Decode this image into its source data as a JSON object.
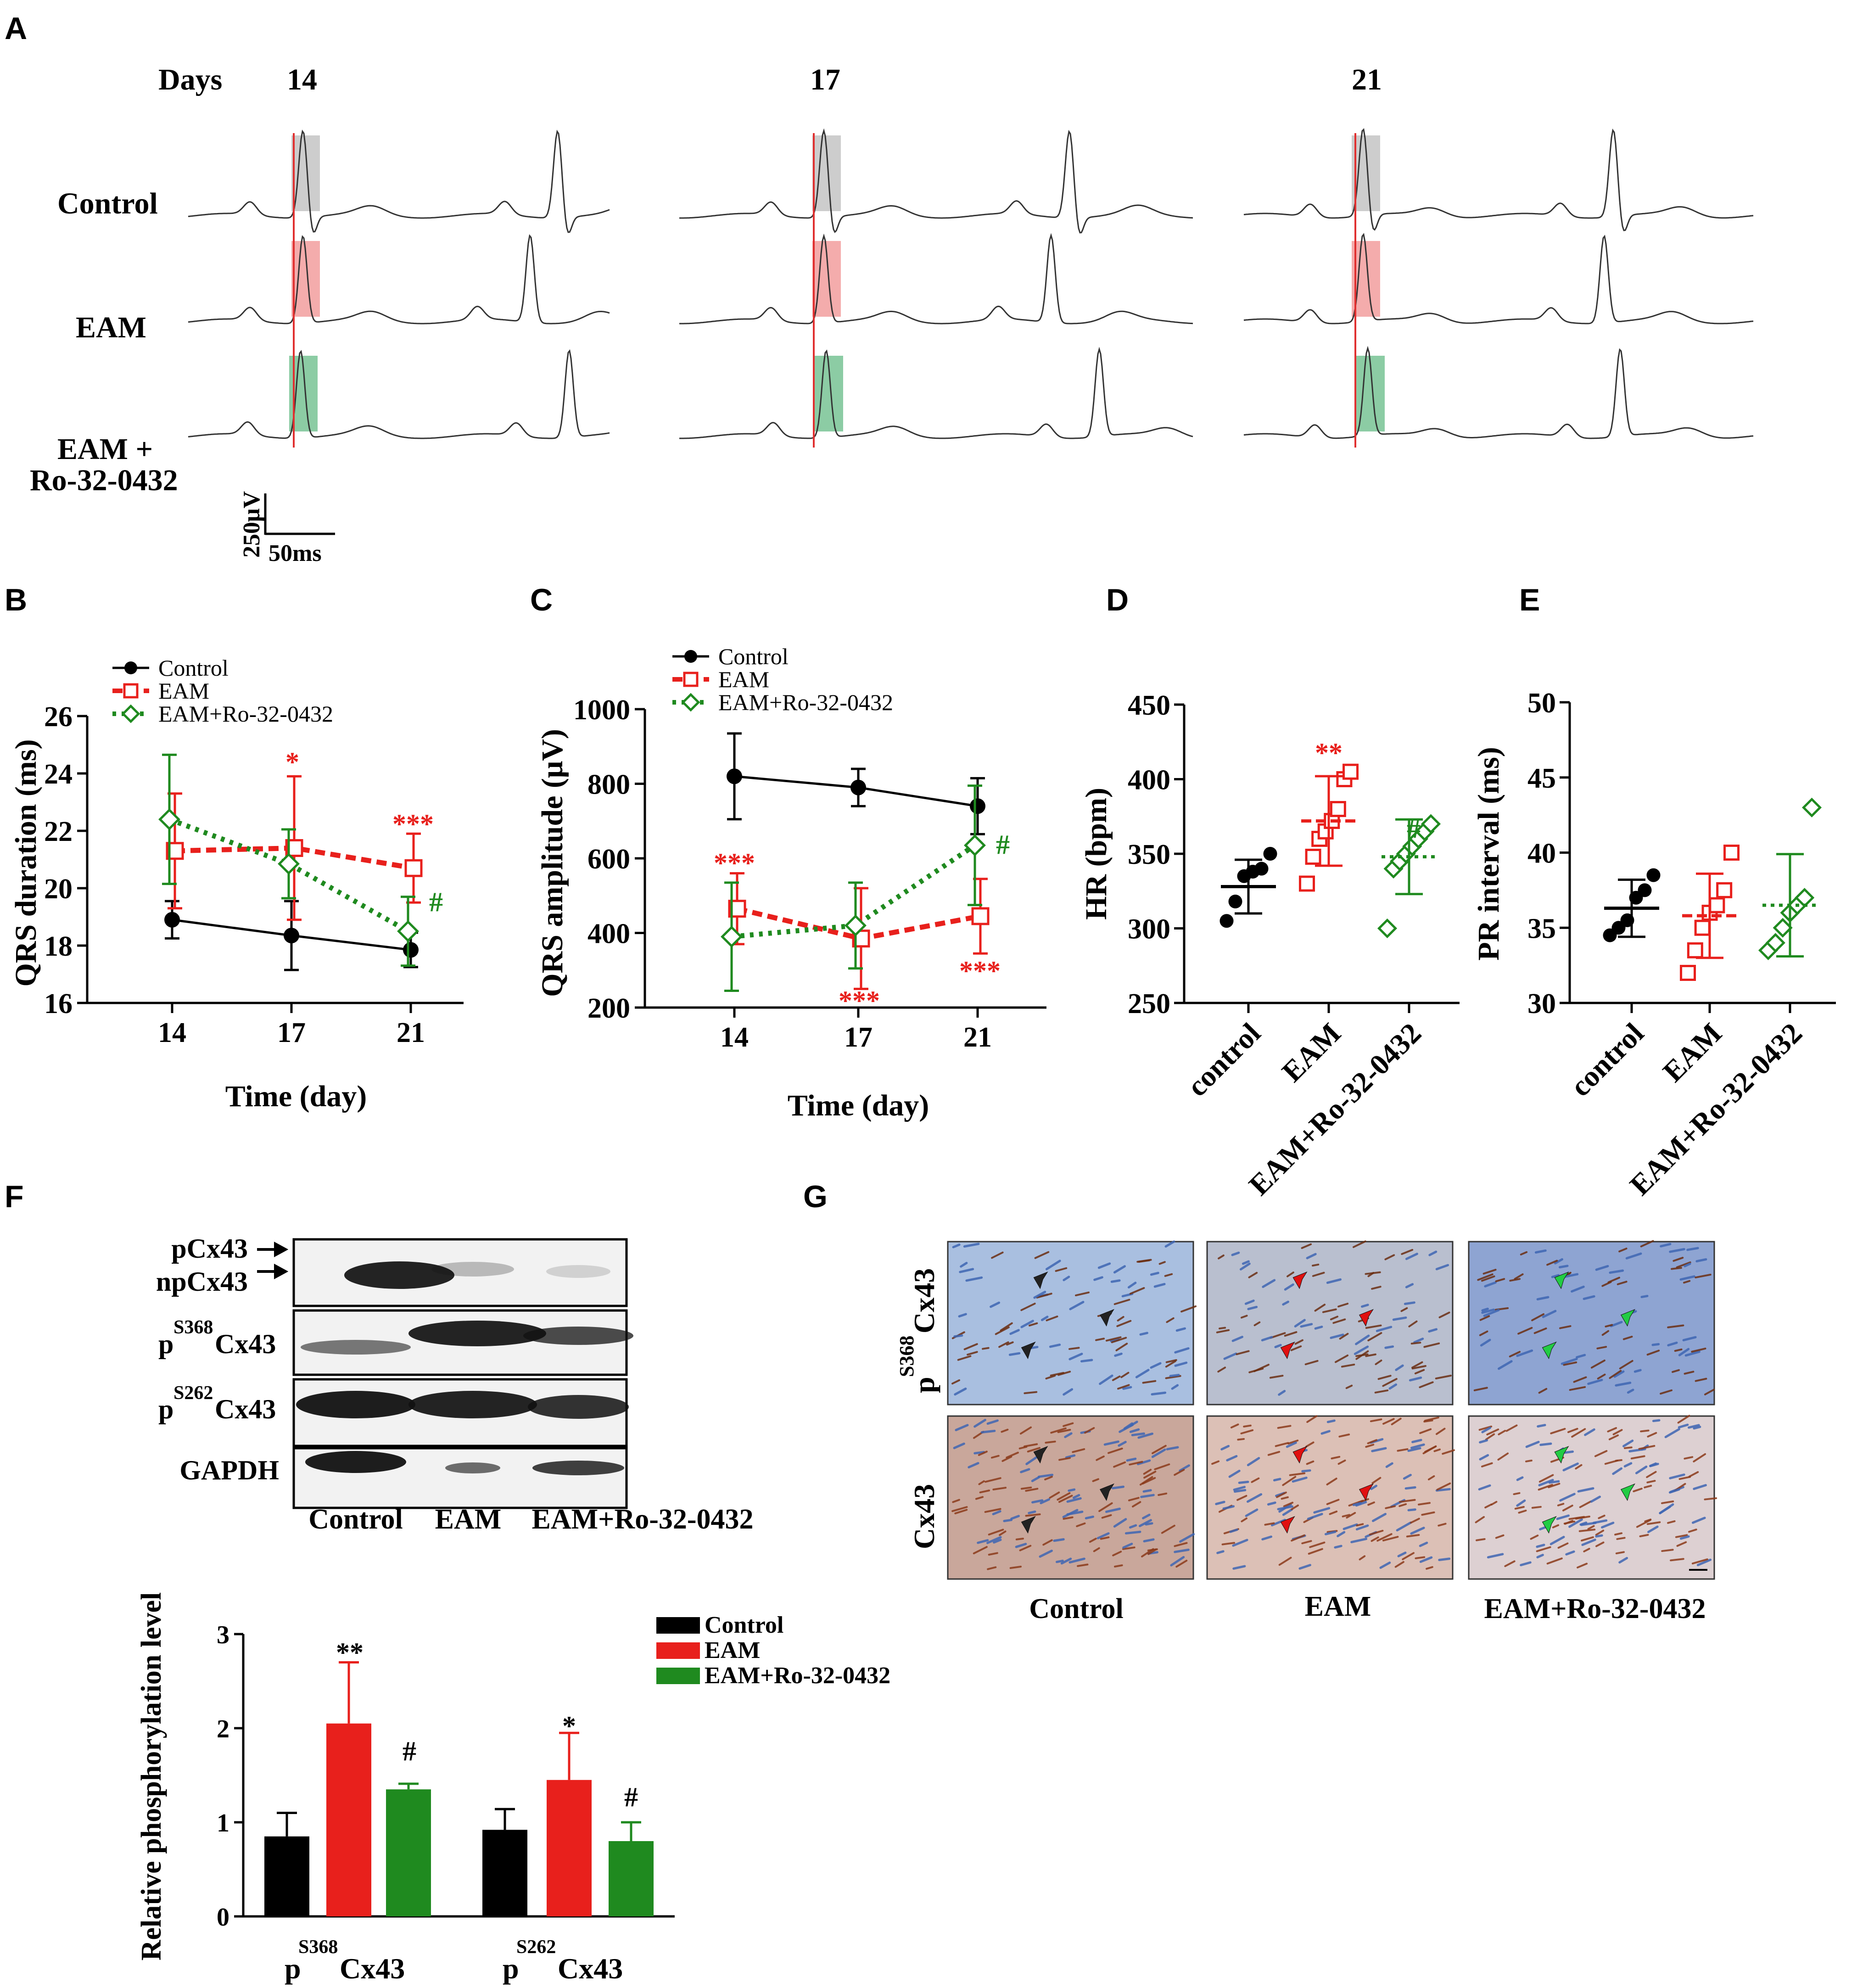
{
  "panel_labels": [
    "A",
    "B",
    "C",
    "D",
    "E",
    "F",
    "G"
  ],
  "panel_a": {
    "days_label": "Days",
    "days": [
      "14",
      "17",
      "21"
    ],
    "rows": [
      "Control",
      "EAM",
      "EAM +",
      "Ro-32-0432"
    ],
    "scale_y": "250μV",
    "scale_x": "50ms",
    "highlight_colors": [
      "#c8c8c8",
      "#f3a3a3",
      "#7fc79a"
    ]
  },
  "panel_f": {
    "blot_rows": [
      "pCx43",
      "npCx43",
      "p",
      "S368",
      "Cx43",
      "p",
      "S262",
      "Cx43",
      "GAPDH"
    ],
    "lanes": [
      "Control",
      "EAM",
      "EAM+Ro-32-0432"
    ]
  },
  "panel_g": {
    "row_labels": [
      "p",
      "S368",
      "Cx43",
      "Cx43"
    ],
    "columns": [
      "Control",
      "EAM",
      "EAM+Ro-32-0432"
    ],
    "arrow_colors": [
      "#222222",
      "#e01010",
      "#22cc44"
    ]
  },
  "colors": {
    "control": "#000000",
    "eam": "#e8201c",
    "ro": "#1f8a1f"
  },
  "chart_data": [
    {
      "panel": "B",
      "type": "line",
      "x": [
        14,
        17,
        21
      ],
      "xticks": [
        "14",
        "17",
        "21"
      ],
      "xlabel": "Time (day)",
      "ylabel": "QRS duration (ms)",
      "ylim": [
        16,
        26
      ],
      "yticks": [
        "16",
        "18",
        "20",
        "22",
        "24",
        "26"
      ],
      "legend": [
        "Control",
        "EAM",
        "EAM+Ro-32-0432"
      ],
      "series": [
        {
          "name": "Control",
          "values": [
            18.9,
            18.35,
            17.85
          ],
          "err": [
            0.65,
            1.2,
            0.6
          ]
        },
        {
          "name": "EAM",
          "values": [
            21.3,
            21.4,
            20.7
          ],
          "err": [
            2.0,
            2.5,
            1.2
          ]
        },
        {
          "name": "EAM+Ro-32-0432",
          "values": [
            22.4,
            20.85,
            18.5
          ],
          "err": [
            2.25,
            1.2,
            1.2
          ]
        }
      ],
      "annotations": [
        "*",
        "***",
        "#"
      ]
    },
    {
      "panel": "C",
      "type": "line",
      "x": [
        14,
        17,
        21
      ],
      "xticks": [
        "14",
        "17",
        "21"
      ],
      "xlabel": "Time (day)",
      "ylabel": "QRS amplitude (μV)",
      "ylim": [
        200,
        1000
      ],
      "yticks": [
        "200",
        "400",
        "600",
        "800",
        "1000"
      ],
      "legend": [
        "Control",
        "EAM",
        "EAM+Ro-32-0432"
      ],
      "series": [
        {
          "name": "Control",
          "values": [
            820,
            790,
            740
          ],
          "err": [
            115,
            50,
            75
          ]
        },
        {
          "name": "EAM",
          "values": [
            465,
            385,
            445
          ],
          "err": [
            95,
            135,
            100
          ]
        },
        {
          "name": "EAM+Ro-32-0432",
          "values": [
            390,
            420,
            635
          ],
          "err": [
            145,
            115,
            160
          ]
        }
      ],
      "annotations": [
        "***",
        "***",
        "***",
        "#"
      ]
    },
    {
      "panel": "D",
      "type": "scatter",
      "categories": [
        "control",
        "EAM",
        "EAM+Ro-32-0432"
      ],
      "ylabel": "HR (bpm)",
      "ylim": [
        250,
        450
      ],
      "yticks": [
        "250",
        "300",
        "350",
        "400",
        "450"
      ],
      "points": [
        [
          305,
          318,
          335,
          338,
          340,
          350
        ],
        [
          330,
          348,
          360,
          365,
          372,
          380,
          400,
          405
        ],
        [
          300,
          340,
          345,
          350,
          355,
          360,
          365,
          370
        ]
      ],
      "mean": [
        328,
        372,
        348
      ],
      "sd": [
        18,
        30,
        25
      ],
      "annotations": [
        "**",
        "#"
      ]
    },
    {
      "panel": "E",
      "type": "scatter",
      "categories": [
        "control",
        "EAM",
        "EAM+Ro-32-0432"
      ],
      "ylabel": "PR interval (ms)",
      "ylim": [
        30,
        50
      ],
      "yticks": [
        "30",
        "35",
        "40",
        "45",
        "50"
      ],
      "points": [
        [
          34.5,
          35,
          35.5,
          37,
          37.5,
          38.5
        ],
        [
          32,
          33.5,
          35,
          36,
          36.5,
          37.5,
          40
        ],
        [
          33.5,
          34,
          35,
          36,
          36.5,
          37,
          43
        ]
      ],
      "mean": [
        36.3,
        35.8,
        36.5
      ],
      "sd": [
        1.9,
        2.8,
        3.4
      ]
    },
    {
      "panel": "F",
      "type": "bar",
      "categories": [
        "S368",
        "S262"
      ],
      "ylabel": "Relative phosphorylation level",
      "ylim": [
        0,
        3
      ],
      "yticks": [
        "0",
        "1",
        "2",
        "3"
      ],
      "legend": [
        "Control",
        "EAM",
        "EAM+Ro-32-0432"
      ],
      "series": [
        {
          "name": "Control",
          "values": [
            0.85,
            0.92
          ],
          "err": [
            0.25,
            0.22
          ]
        },
        {
          "name": "EAM",
          "values": [
            2.05,
            1.45
          ],
          "err": [
            0.65,
            0.5
          ]
        },
        {
          "name": "EAM+Ro-32-0432",
          "values": [
            1.35,
            0.8
          ],
          "err": [
            0.06,
            0.2
          ]
        }
      ],
      "annotations": [
        "**",
        "#",
        "*",
        "#"
      ]
    }
  ]
}
